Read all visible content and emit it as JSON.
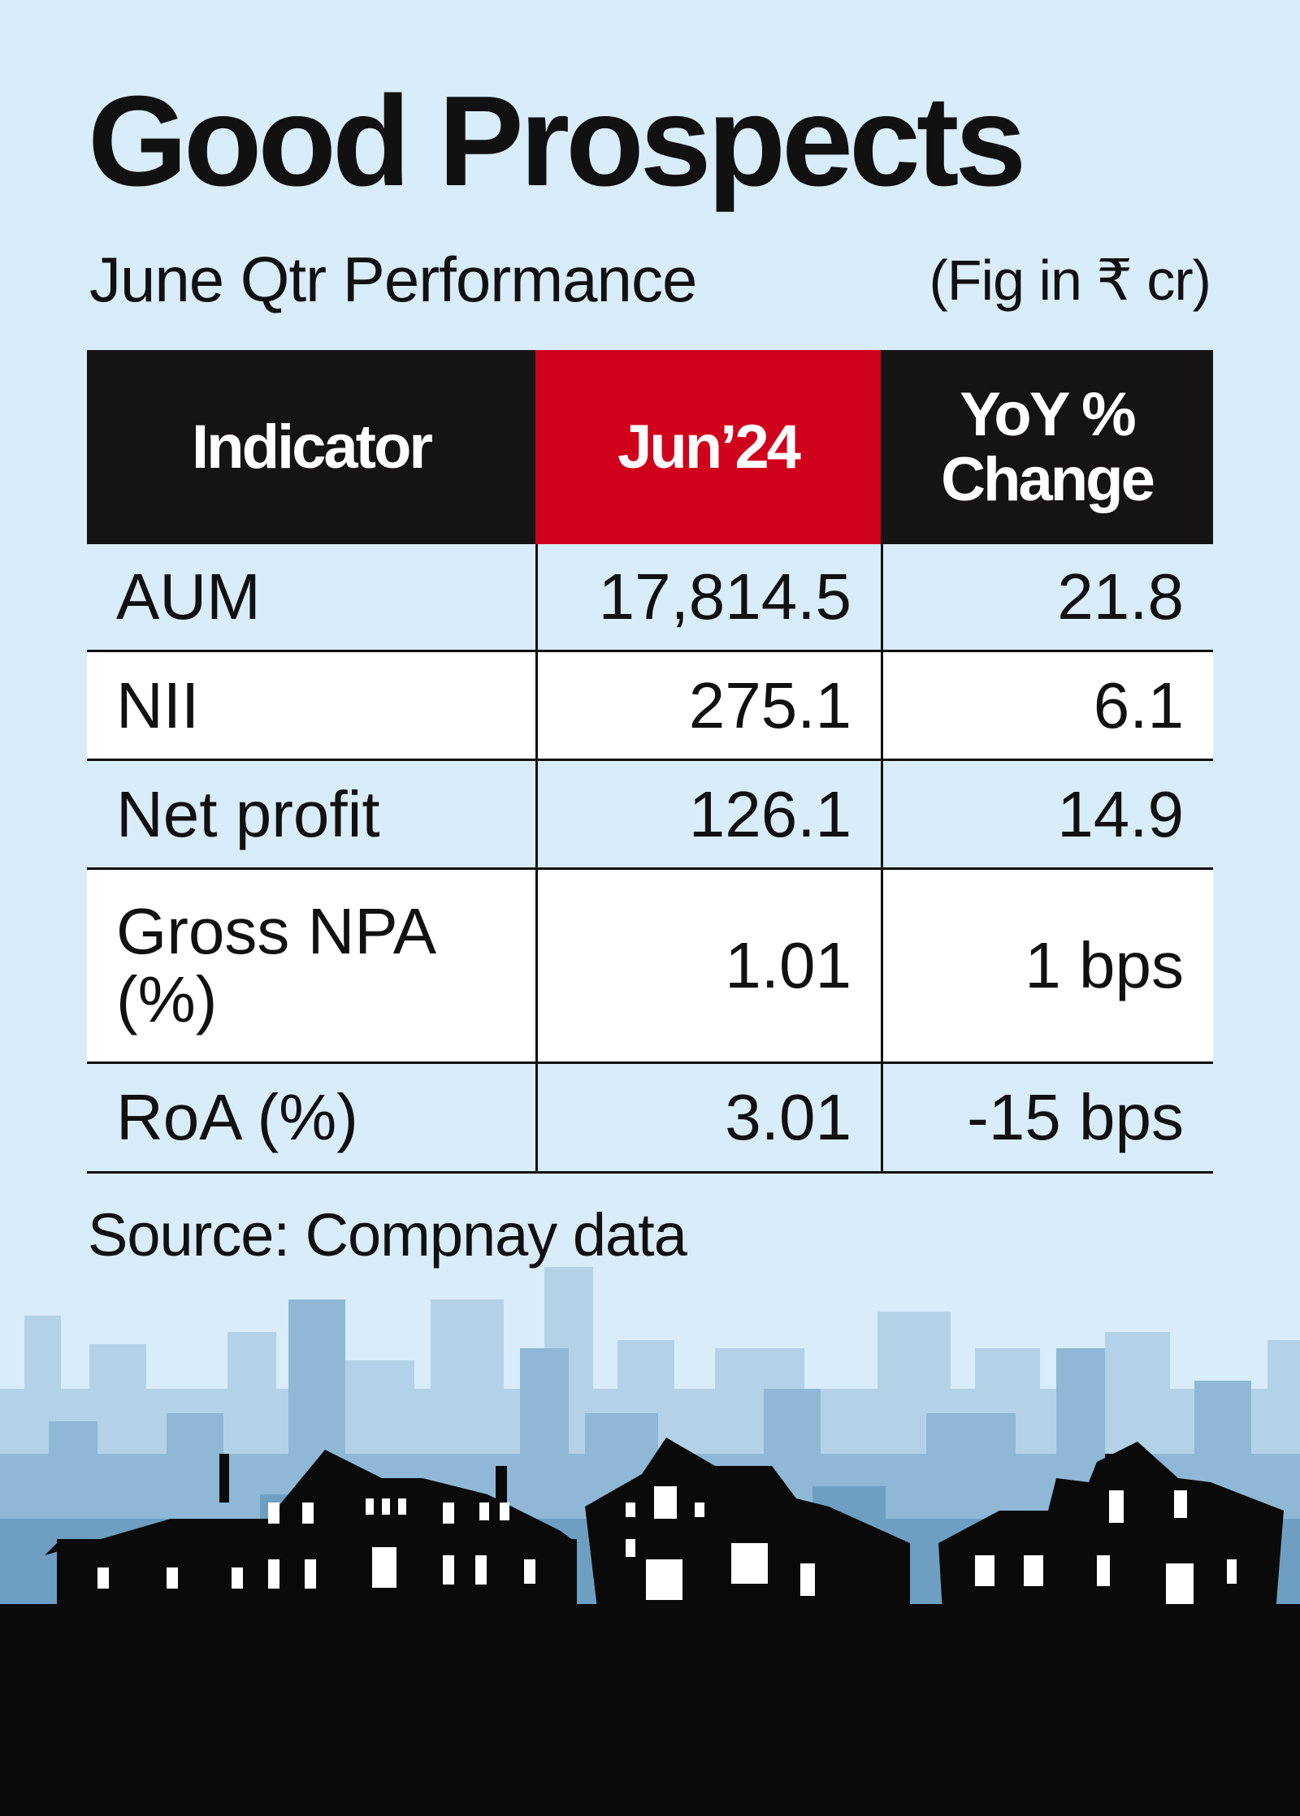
{
  "header": {
    "title": "Good Prospects",
    "subtitle": "June Qtr Performance",
    "unit": "(Fig in ₹ cr)"
  },
  "table": {
    "columns": [
      "Indicator",
      "Jun’24",
      "YoY % Change"
    ],
    "rows": [
      [
        "AUM",
        "17,814.5",
        "21.8"
      ],
      [
        "NII",
        "275.1",
        "6.1"
      ],
      [
        "Net profit",
        "126.1",
        "14.9"
      ],
      [
        "Gross NPA (%)",
        "1.01",
        "1 bps"
      ],
      [
        "RoA (%)",
        "3.01",
        "-15 bps"
      ]
    ]
  },
  "footer": {
    "source": "Source: Compnay data"
  }
}
